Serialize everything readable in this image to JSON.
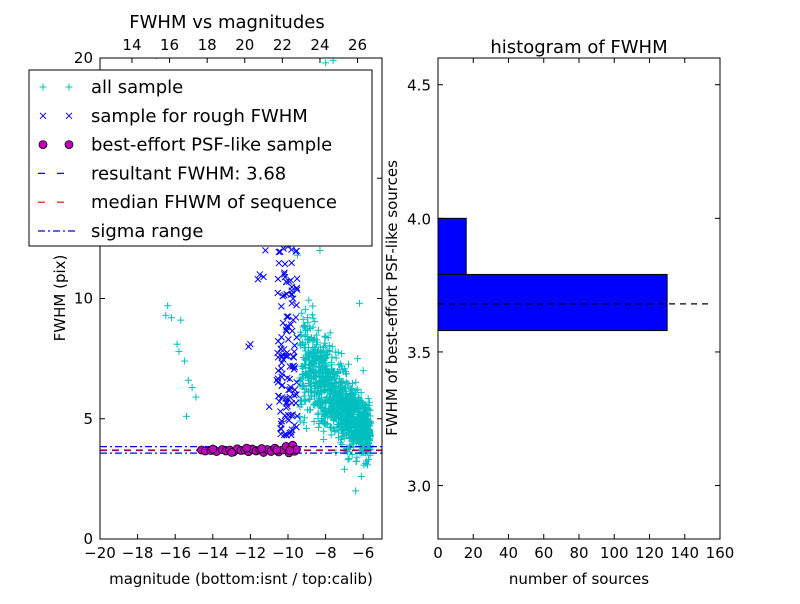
{
  "chart_data": [
    {
      "type": "scatter",
      "title": "FWHM vs magnitudes",
      "xlabel": "magnitude (bottom:isnt / top:calib)",
      "ylabel": "FWHM (pix)",
      "xlim": [
        -20,
        -5
      ],
      "ylim": [
        0,
        20
      ],
      "x_ticks": [
        "−20",
        "−18",
        "−16",
        "−14",
        "−12",
        "−10",
        "−8",
        "−6"
      ],
      "x_tick_values": [
        -20,
        -18,
        -16,
        -14,
        -12,
        -10,
        -8,
        -6
      ],
      "y_ticks": [
        "0",
        "5",
        "10",
        "15",
        "20"
      ],
      "y_tick_values": [
        0,
        5,
        10,
        15,
        20
      ],
      "top_ticks": [
        "14",
        "16",
        "18",
        "20",
        "22",
        "24",
        "26"
      ],
      "top_tick_values": [
        14,
        16,
        18,
        20,
        22,
        24,
        26
      ],
      "top_offset": 32.3,
      "legend": {
        "position": "upper-left",
        "entries": [
          {
            "label": "all sample",
            "marker": "+",
            "color": "#00bfbf"
          },
          {
            "label": "sample for rough FWHM",
            "marker": "x",
            "color": "#0000ff"
          },
          {
            "label": "best-effort PSF-like sample",
            "marker": "o",
            "color": "#bf00bf"
          },
          {
            "label": "resultant FWHM: 3.68",
            "marker": "dashed",
            "color": "#0000ff"
          },
          {
            "label": "median FHWM of sequence",
            "marker": "dashed",
            "color": "#ff0000"
          },
          {
            "label": "sigma range",
            "marker": "dashdot",
            "color": "#0000ff"
          }
        ]
      },
      "series": [
        {
          "name": "all sample",
          "color": "#00bfbf",
          "points": [
            [
              -17.0,
              20.1
            ],
            [
              -16.4,
              9.7
            ],
            [
              -16.2,
              9.2
            ],
            [
              -15.9,
              8.1
            ],
            [
              -15.8,
              7.8
            ],
            [
              -15.5,
              7.4
            ],
            [
              -15.3,
              6.6
            ],
            [
              -15.1,
              6.3
            ],
            [
              -14.9,
              5.9
            ],
            [
              -16.5,
              9.3
            ],
            [
              -15.7,
              9.1
            ],
            [
              -15.4,
              5.1
            ],
            [
              -8.0,
              19.8
            ],
            [
              -7.6,
              19.9
            ],
            [
              -7.8,
              18.9
            ],
            [
              -8.4,
              17.0
            ],
            [
              -7.4,
              16.2
            ],
            [
              -6.2,
              9.8
            ],
            [
              -6.3,
              7.5
            ],
            [
              -6.0,
              7.0
            ],
            [
              -5.9,
              5.2
            ],
            [
              -6.1,
              2.6
            ],
            [
              -6.4,
              2.0
            ],
            [
              -5.8,
              3.8
            ],
            [
              -6.8,
              3.3
            ],
            [
              -7.0,
              2.9
            ],
            [
              -7.2,
              4.0
            ],
            [
              -8.8,
              15.0
            ],
            [
              -9.3,
              13.7
            ],
            [
              -9.1,
              12.5
            ],
            [
              -8.6,
              13.2
            ],
            [
              -8.3,
              12.0
            ],
            [
              -9.5,
              11.8
            ]
          ],
          "cloud": {
            "x_range": [
              -9.4,
              -5.6
            ],
            "y_center_at_left": 7.5,
            "y_center_at_right": 4.3
          }
        },
        {
          "name": "sample for rough FWHM",
          "color": "#0000ff",
          "points": [
            [
              -11.5,
              11.0
            ],
            [
              -11.6,
              10.8
            ],
            [
              -11.3,
              10.9
            ],
            [
              -12.0,
              8.1
            ],
            [
              -12.1,
              8.0
            ],
            [
              -10.8,
              13.2
            ],
            [
              -10.6,
              12.8
            ],
            [
              -11.2,
              12.0
            ],
            [
              -11.0,
              5.5
            ],
            [
              -10.4,
              5.3
            ],
            [
              -10.0,
              15.2
            ],
            [
              -9.9,
              14.1
            ],
            [
              -10.2,
              11.0
            ],
            [
              -9.8,
              9.8
            ],
            [
              -10.1,
              8.7
            ],
            [
              -9.7,
              7.2
            ],
            [
              -10.3,
              6.4
            ],
            [
              -9.9,
              5.9
            ]
          ],
          "cloud": {
            "x_range": [
              -10.6,
              -9.5
            ],
            "y_range": [
              4.3,
              16.2
            ]
          }
        },
        {
          "name": "best-effort PSF-like sample",
          "color": "#bf00bf",
          "points": [
            [
              -14.6,
              3.7
            ],
            [
              -14.4,
              3.66
            ],
            [
              -14.1,
              3.68
            ],
            [
              -13.8,
              3.64
            ],
            [
              -13.5,
              3.72
            ],
            [
              -13.3,
              3.66
            ],
            [
              -13.1,
              3.7
            ],
            [
              -12.9,
              3.62
            ],
            [
              -12.7,
              3.75
            ],
            [
              -12.5,
              3.68
            ],
            [
              -12.3,
              3.7
            ],
            [
              -12.1,
              3.63
            ],
            [
              -11.9,
              3.74
            ],
            [
              -11.7,
              3.66
            ],
            [
              -11.5,
              3.7
            ],
            [
              -11.3,
              3.6
            ],
            [
              -11.1,
              3.72
            ],
            [
              -10.9,
              3.64
            ],
            [
              -10.7,
              3.78
            ],
            [
              -10.5,
              3.62
            ],
            [
              -10.3,
              3.7
            ],
            [
              -10.1,
              3.85
            ],
            [
              -9.95,
              3.58
            ],
            [
              -9.85,
              3.76
            ],
            [
              -9.75,
              3.9
            ],
            [
              -9.65,
              3.65
            ],
            [
              -9.55,
              3.72
            ],
            [
              -14.0,
              3.74
            ],
            [
              -13.0,
              3.6
            ],
            [
              -12.2,
              3.78
            ],
            [
              -11.4,
              3.76
            ],
            [
              -10.6,
              3.7
            ],
            [
              -9.9,
              3.68
            ]
          ]
        }
      ],
      "hlines": [
        {
          "name": "resultant FWHM: 3.68",
          "y": 3.68,
          "color": "#0000ff",
          "style": "dashed"
        },
        {
          "name": "median FHWM of sequence",
          "y": 3.7,
          "color": "#ff0000",
          "style": "dashed"
        },
        {
          "name": "sigma range",
          "y": 3.57,
          "color": "#0000ff",
          "style": "dashdot"
        },
        {
          "name": "sigma range",
          "y": 3.84,
          "color": "#0000ff",
          "style": "dashdot"
        }
      ]
    },
    {
      "type": "bar",
      "orientation": "horizontal",
      "title": "histogram of FWHM",
      "xlabel": "number of sources",
      "ylabel": "FWHM of best-effort PSF-like sources",
      "xlim": [
        0,
        160
      ],
      "ylim": [
        2.8,
        4.6
      ],
      "x_ticks": [
        "0",
        "20",
        "40",
        "60",
        "80",
        "100",
        "120",
        "140",
        "160"
      ],
      "x_tick_values": [
        0,
        20,
        40,
        60,
        80,
        100,
        120,
        140,
        160
      ],
      "y_ticks": [
        "3.0",
        "3.5",
        "4.0",
        "4.5"
      ],
      "y_tick_values": [
        3.0,
        3.5,
        4.0,
        4.5
      ],
      "color": "#0000ff",
      "bins": [
        {
          "y0": 3.58,
          "y1": 3.79,
          "count": 130
        },
        {
          "y0": 3.79,
          "y1": 4.0,
          "count": 16
        },
        {
          "y0": 4.0,
          "y1": 4.21,
          "count": 0
        },
        {
          "y0": 4.21,
          "y1": 4.43,
          "count": 0
        }
      ],
      "hline": {
        "y": 3.68,
        "color": "#000000",
        "style": "dashed",
        "x_extent": [
          0,
          155
        ]
      }
    }
  ]
}
